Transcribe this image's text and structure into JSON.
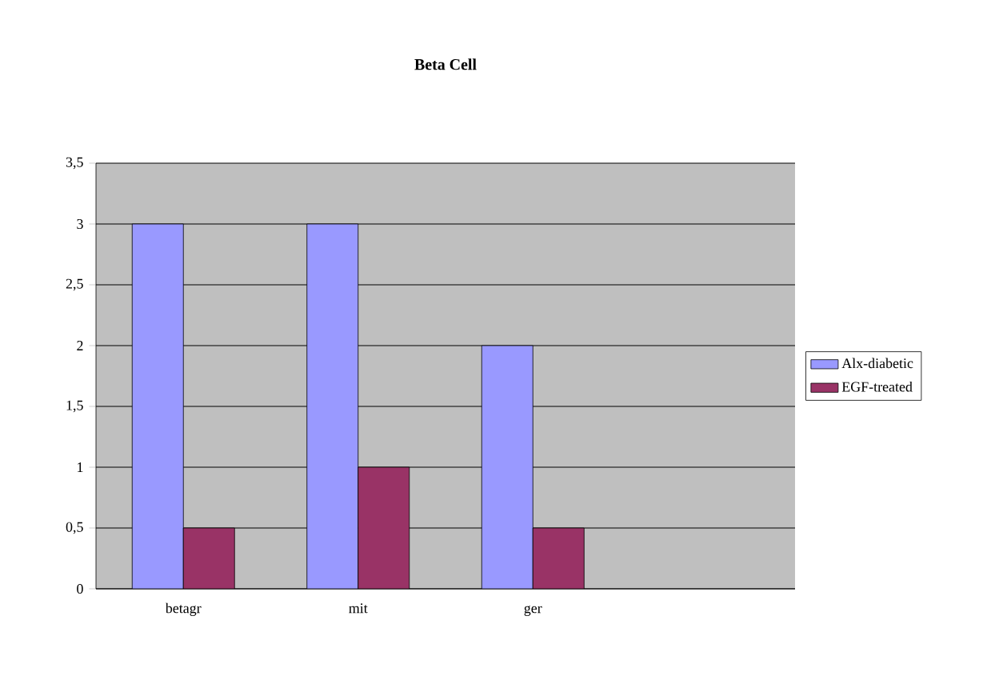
{
  "chart_data": {
    "type": "bar",
    "title": "Beta Cell",
    "categories": [
      "betagr",
      "mit",
      "ger",
      null
    ],
    "series": [
      {
        "name": "Alx-diabetic",
        "color": "#9999ff",
        "values": [
          3,
          3,
          2,
          null
        ]
      },
      {
        "name": "EGF-treated",
        "color": "#993366",
        "values": [
          0.5,
          1,
          0.5,
          null
        ]
      }
    ],
    "ylim": [
      0,
      3.5
    ],
    "yticks": [
      0,
      {
        "value": 0.5,
        "label": "0,5"
      },
      1,
      {
        "value": 1.5,
        "label": "1,5"
      },
      2,
      {
        "value": 2.5,
        "label": "2,5"
      },
      3,
      {
        "value": 3.5,
        "label": "3,5"
      }
    ],
    "grid": "y",
    "legend": "right"
  }
}
